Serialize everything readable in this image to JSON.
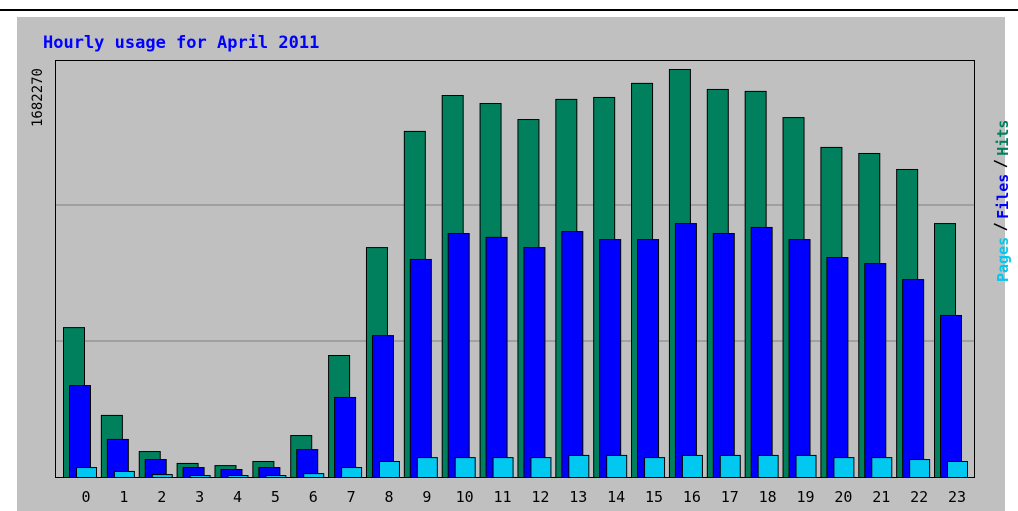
{
  "chart_data": {
    "type": "bar",
    "title": "Hourly usage for April 2011",
    "categories": [
      "0",
      "1",
      "2",
      "3",
      "4",
      "5",
      "6",
      "7",
      "8",
      "9",
      "10",
      "11",
      "12",
      "13",
      "14",
      "15",
      "16",
      "17",
      "18",
      "19",
      "20",
      "21",
      "22",
      "23"
    ],
    "series": [
      {
        "name": "Hits",
        "color": "#00805c",
        "values": [
          618000,
          256000,
          107000,
          58000,
          49000,
          66000,
          173000,
          503000,
          948000,
          1427000,
          1575000,
          1542000,
          1476000,
          1559000,
          1567000,
          1625000,
          1682270,
          1600000,
          1592000,
          1484000,
          1361000,
          1336000,
          1270000,
          1047000
        ]
      },
      {
        "name": "Files",
        "color": "#0000ff",
        "values": [
          379000,
          157000,
          74000,
          41000,
          33000,
          41000,
          115000,
          330000,
          585000,
          899000,
          1006000,
          990000,
          948000,
          1014000,
          981000,
          981000,
          1047000,
          1006000,
          1031000,
          981000,
          907000,
          882000,
          816000,
          668000
        ]
      },
      {
        "name": "Pages",
        "color": "#00c8f0",
        "values": [
          41000,
          25000,
          12000,
          8000,
          8000,
          8000,
          16000,
          41000,
          66000,
          82000,
          82000,
          82000,
          82000,
          91000,
          91000,
          82000,
          91000,
          91000,
          91000,
          91000,
          82000,
          82000,
          74000,
          66000
        ]
      }
    ],
    "ylim": [
      0,
      1682270
    ],
    "yticks": [
      1682270
    ],
    "grid": true
  }
}
